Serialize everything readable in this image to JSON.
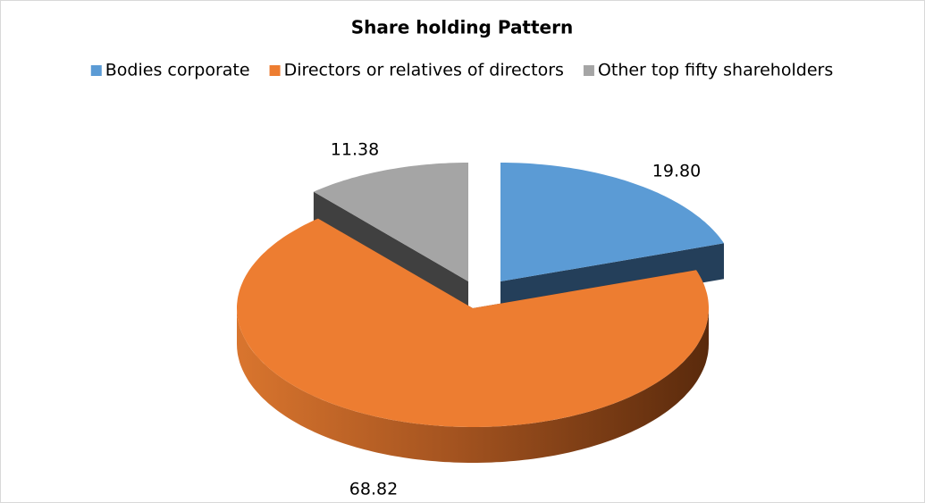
{
  "chart_data": {
    "type": "pie3d",
    "title": "Share holding Pattern",
    "categories": [
      "Bodies corporate",
      "Directors or relatives of directors",
      "Other top fifty shareholders"
    ],
    "values": [
      19.8,
      68.82,
      11.38
    ],
    "value_labels": [
      "19.80",
      "68.82",
      "11.38"
    ],
    "colors": [
      "#5b9bd5",
      "#ed7d31",
      "#a5a5a5"
    ],
    "legend": "top"
  }
}
